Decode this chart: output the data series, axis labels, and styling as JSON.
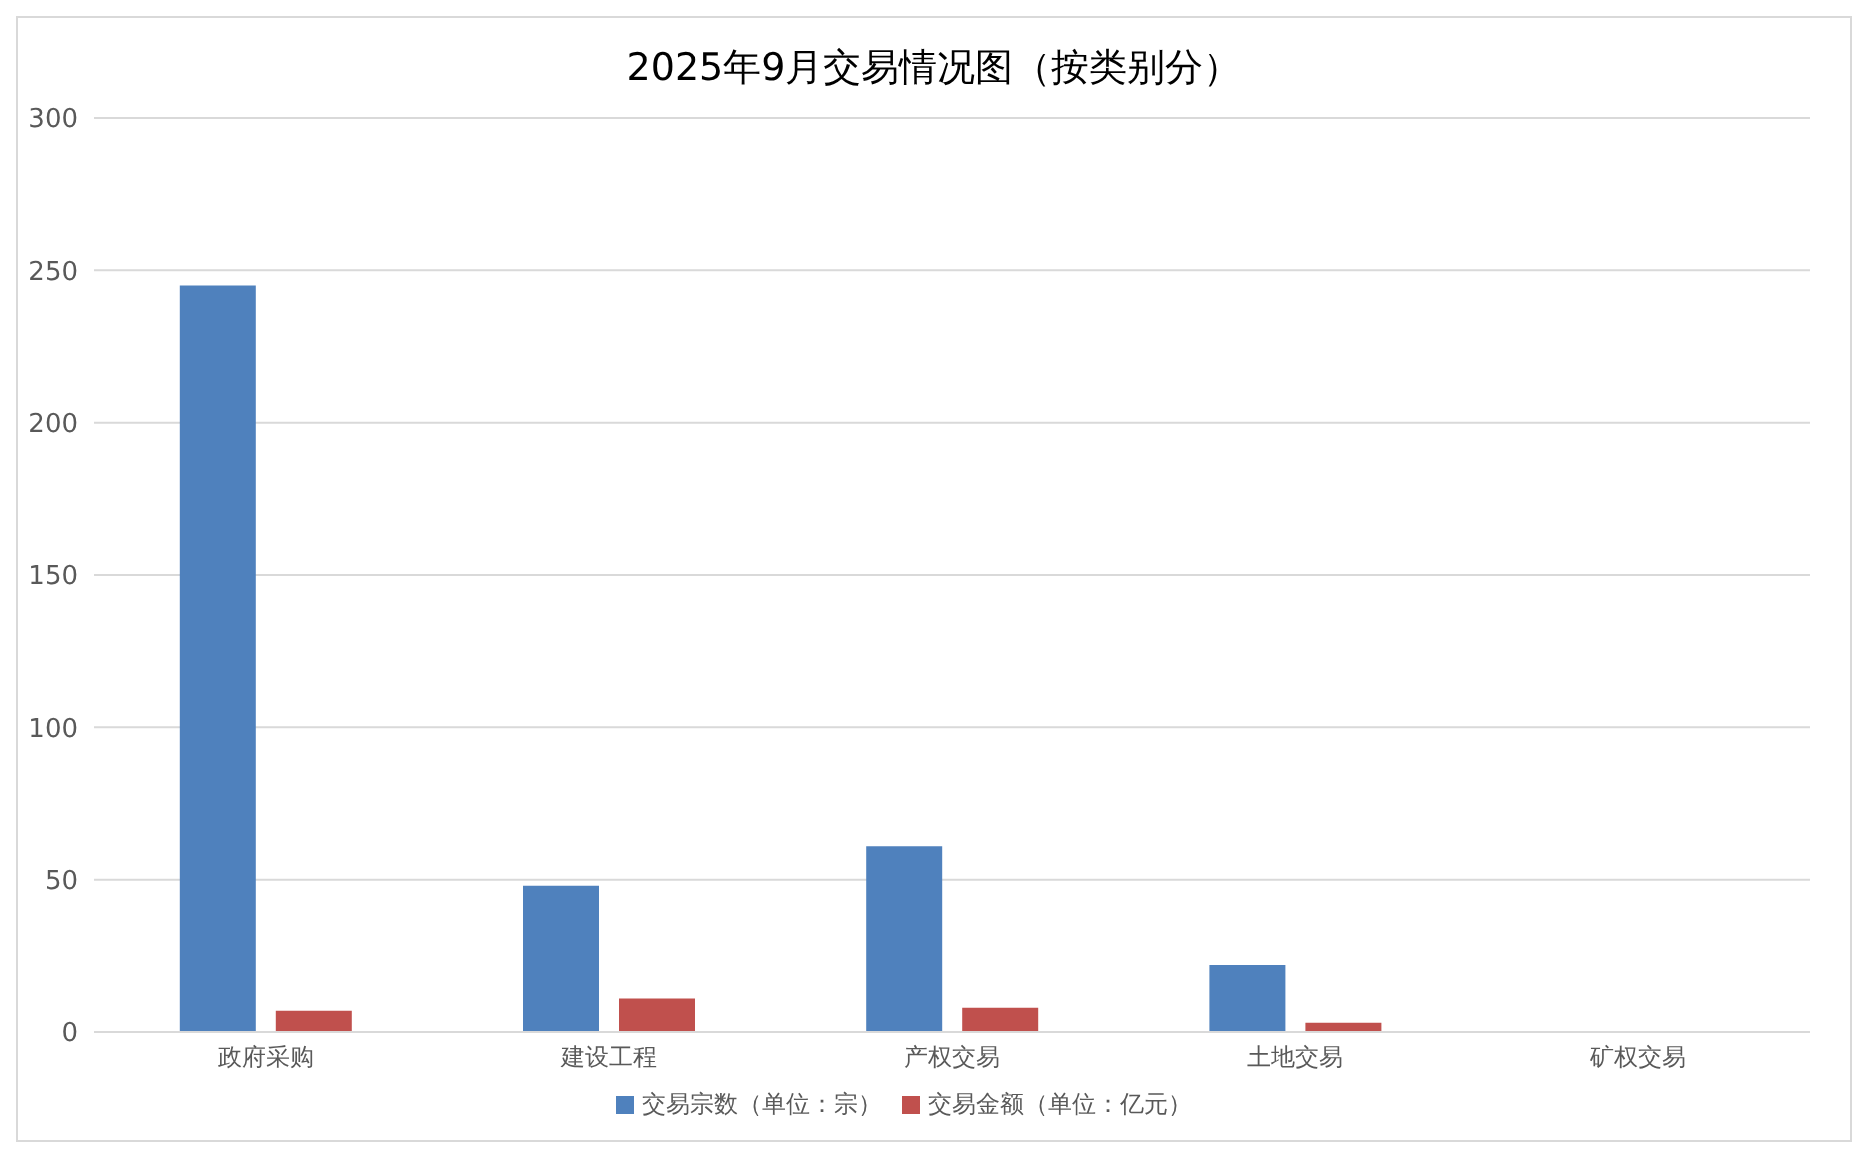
{
  "chart_data": {
    "type": "bar",
    "title": "2025年9月交易情况图（按类别分）",
    "categories": [
      "政府采购",
      "建设工程",
      "产权交易",
      "土地交易",
      "矿权交易"
    ],
    "series": [
      {
        "name": "交易宗数（单位：宗）",
        "color": "#4f81bd",
        "values": [
          245,
          48,
          61,
          22,
          0
        ]
      },
      {
        "name": "交易金额（单位：亿元）",
        "color": "#c0504d",
        "values": [
          7,
          11,
          8,
          3,
          0
        ]
      }
    ],
    "ylim": [
      0,
      300
    ],
    "yticks": [
      0,
      50,
      100,
      150,
      200,
      250,
      300
    ],
    "grid": "y",
    "legend": "bottom"
  }
}
